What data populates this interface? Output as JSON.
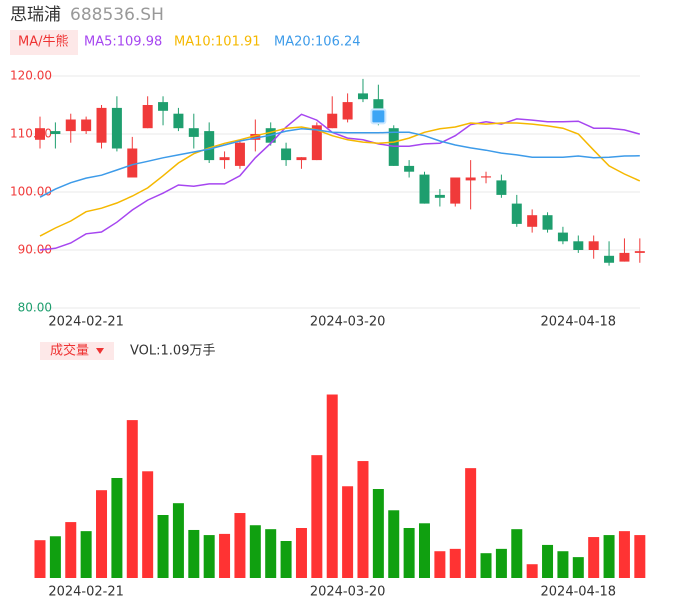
{
  "header": {
    "name": "思瑞浦",
    "code": "688536.SH"
  },
  "chart_data": [
    {
      "type": "candlestick",
      "indicator_button": "MA/牛熊",
      "categories": [
        null,
        null,
        null,
        "2024-02-21",
        null,
        null,
        null,
        null,
        null,
        null,
        null,
        null,
        null,
        null,
        null,
        null,
        null,
        null,
        null,
        null,
        "2024-03-20",
        null,
        null,
        null,
        null,
        null,
        null,
        null,
        null,
        null,
        null,
        null,
        null,
        null,
        null,
        "2024-04-18",
        null,
        null,
        null,
        null
      ],
      "open": [
        109.0,
        110.5,
        110.5,
        110.5,
        108.5,
        114.5,
        102.5,
        111.0,
        115.5,
        113.5,
        111.0,
        110.5,
        105.5,
        104.5,
        109.0,
        111.0,
        107.5,
        105.5,
        105.5,
        111.0,
        112.5,
        117.0,
        116.0,
        111.0,
        104.5,
        103.0,
        99.5,
        98.0,
        102.0,
        102.5,
        102.0,
        98.0,
        94.0,
        96.0,
        93.0,
        91.5,
        90.0,
        89.0,
        88.0,
        89.5
      ],
      "close": [
        111.0,
        110.0,
        112.5,
        112.5,
        114.5,
        107.5,
        107.5,
        115.0,
        114.0,
        111.0,
        109.5,
        105.5,
        106.0,
        108.5,
        110.0,
        108.5,
        105.5,
        106.0,
        111.5,
        113.5,
        115.5,
        116.0,
        112.0,
        104.5,
        103.5,
        98.0,
        99.0,
        102.5,
        102.5,
        102.7,
        99.5,
        94.5,
        96.0,
        93.5,
        91.5,
        90.0,
        91.5,
        87.8,
        89.5,
        89.8
      ],
      "high": [
        113.0,
        112.0,
        113.5,
        113.0,
        115.0,
        116.5,
        109.5,
        116.5,
        116.5,
        114.5,
        113.5,
        112.0,
        107.0,
        109.0,
        112.5,
        112.0,
        108.5,
        106.0,
        112.0,
        116.5,
        117.0,
        119.5,
        118.5,
        111.5,
        105.5,
        103.5,
        100.5,
        102.5,
        105.5,
        103.5,
        103.0,
        99.5,
        97.0,
        96.5,
        94.0,
        92.5,
        92.5,
        91.5,
        92.0,
        92.0
      ],
      "low": [
        107.5,
        107.5,
        108.5,
        110.0,
        107.5,
        107.0,
        102.5,
        111.0,
        111.5,
        110.5,
        107.5,
        105.0,
        104.0,
        104.0,
        107.0,
        108.0,
        104.5,
        104.0,
        105.5,
        111.0,
        112.0,
        115.5,
        111.5,
        104.5,
        102.5,
        98.0,
        97.5,
        97.5,
        97.0,
        101.5,
        99.0,
        94.0,
        93.0,
        93.0,
        91.0,
        89.5,
        88.5,
        87.3,
        88.0,
        87.8
      ],
      "up_color": "#f03a3a",
      "down_color": "#1e9e6e",
      "ylim": [
        80,
        120
      ],
      "yticks": [
        {
          "value": 80,
          "label": "80.00"
        },
        {
          "value": 90,
          "label": "90.00"
        },
        {
          "value": 100,
          "label": "100.00"
        },
        {
          "value": 110,
          "label": "110.00"
        },
        {
          "value": 120,
          "label": "120.00"
        }
      ],
      "ytick_colors": [
        "#1e9e6e",
        "#f03a3a",
        "#f03a3a",
        "#f03a3a",
        "#f03a3a"
      ],
      "grid": true,
      "series": [
        {
          "name": "MA5:109.98",
          "color": "#a646f0",
          "values": [
            90.0,
            90.3,
            91.2,
            92.8,
            93.1,
            94.8,
            96.9,
            98.6,
            99.8,
            101.2,
            101.0,
            101.4,
            101.4,
            102.8,
            105.9,
            108.4,
            111.2,
            113.4,
            112.4,
            110.3,
            109.3,
            109.0,
            108.3,
            107.9,
            107.9,
            108.3,
            108.4,
            109.7,
            111.6,
            112.1,
            111.7,
            112.6,
            112.4,
            112.1,
            112.1,
            112.2,
            111.0,
            111.0,
            110.7,
            109.98
          ]
        },
        {
          "name": "MA10:101.91",
          "color": "#f5b800",
          "values": [
            92.4,
            93.8,
            95.0,
            96.6,
            97.2,
            98.1,
            99.3,
            100.7,
            102.8,
            105.0,
            106.6,
            107.6,
            108.4,
            109.0,
            109.7,
            110.3,
            111.0,
            111.2,
            110.7,
            109.7,
            109.0,
            108.6,
            108.4,
            108.6,
            109.3,
            110.3,
            110.9,
            111.2,
            111.9,
            111.7,
            111.9,
            111.9,
            111.7,
            111.4,
            111.0,
            110.0,
            107.2,
            104.5,
            103.1,
            101.91
          ]
        },
        {
          "name": "MA20:106.24",
          "color": "#3d9be9",
          "values": [
            99.1,
            100.5,
            101.6,
            102.4,
            102.9,
            103.8,
            104.7,
            105.3,
            105.9,
            106.4,
            106.9,
            107.4,
            108.1,
            108.8,
            109.3,
            109.8,
            110.5,
            110.9,
            110.7,
            110.3,
            110.2,
            110.2,
            110.2,
            110.3,
            110.3,
            109.7,
            108.8,
            108.1,
            107.6,
            107.2,
            106.7,
            106.4,
            106.0,
            106.0,
            106.0,
            106.2,
            105.9,
            106.0,
            106.2,
            106.24
          ]
        }
      ]
    },
    {
      "type": "bar",
      "title": "成交量",
      "label": "VOL:1.09万手",
      "categories": [
        null,
        null,
        null,
        "2024-02-21",
        null,
        null,
        null,
        null,
        null,
        null,
        null,
        null,
        null,
        null,
        null,
        null,
        null,
        null,
        null,
        null,
        "2024-03-20",
        null,
        null,
        null,
        null,
        null,
        null,
        null,
        null,
        null,
        null,
        null,
        null,
        null,
        null,
        "2024-04-18",
        null,
        null,
        null,
        null
      ],
      "values": [
        0.96,
        1.06,
        1.42,
        1.19,
        2.23,
        2.54,
        4.01,
        2.71,
        1.6,
        1.9,
        1.22,
        1.09,
        1.12,
        1.65,
        1.34,
        1.24,
        0.94,
        1.27,
        3.12,
        4.66,
        2.33,
        2.97,
        2.26,
        1.72,
        1.27,
        1.39,
        0.68,
        0.74,
        2.79,
        0.63,
        0.74,
        1.24,
        0.35,
        0.84,
        0.68,
        0.53,
        1.04,
        1.09,
        1.19,
        1.09
      ],
      "colors": [
        "#ff3333",
        "#10a010",
        "#ff3333",
        "#10a010",
        "#ff3333",
        "#10a010",
        "#ff3333",
        "#ff3333",
        "#10a010",
        "#10a010",
        "#10a010",
        "#10a010",
        "#ff3333",
        "#ff3333",
        "#10a010",
        "#10a010",
        "#10a010",
        "#ff3333",
        "#ff3333",
        "#ff3333",
        "#ff3333",
        "#ff3333",
        "#10a010",
        "#10a010",
        "#10a010",
        "#10a010",
        "#ff3333",
        "#ff3333",
        "#ff3333",
        "#10a010",
        "#10a010",
        "#10a010",
        "#ff3333",
        "#10a010",
        "#10a010",
        "#10a010",
        "#ff3333",
        "#10a010",
        "#ff3333",
        "#ff3333"
      ],
      "ylim": [
        0,
        4.8
      ]
    }
  ]
}
